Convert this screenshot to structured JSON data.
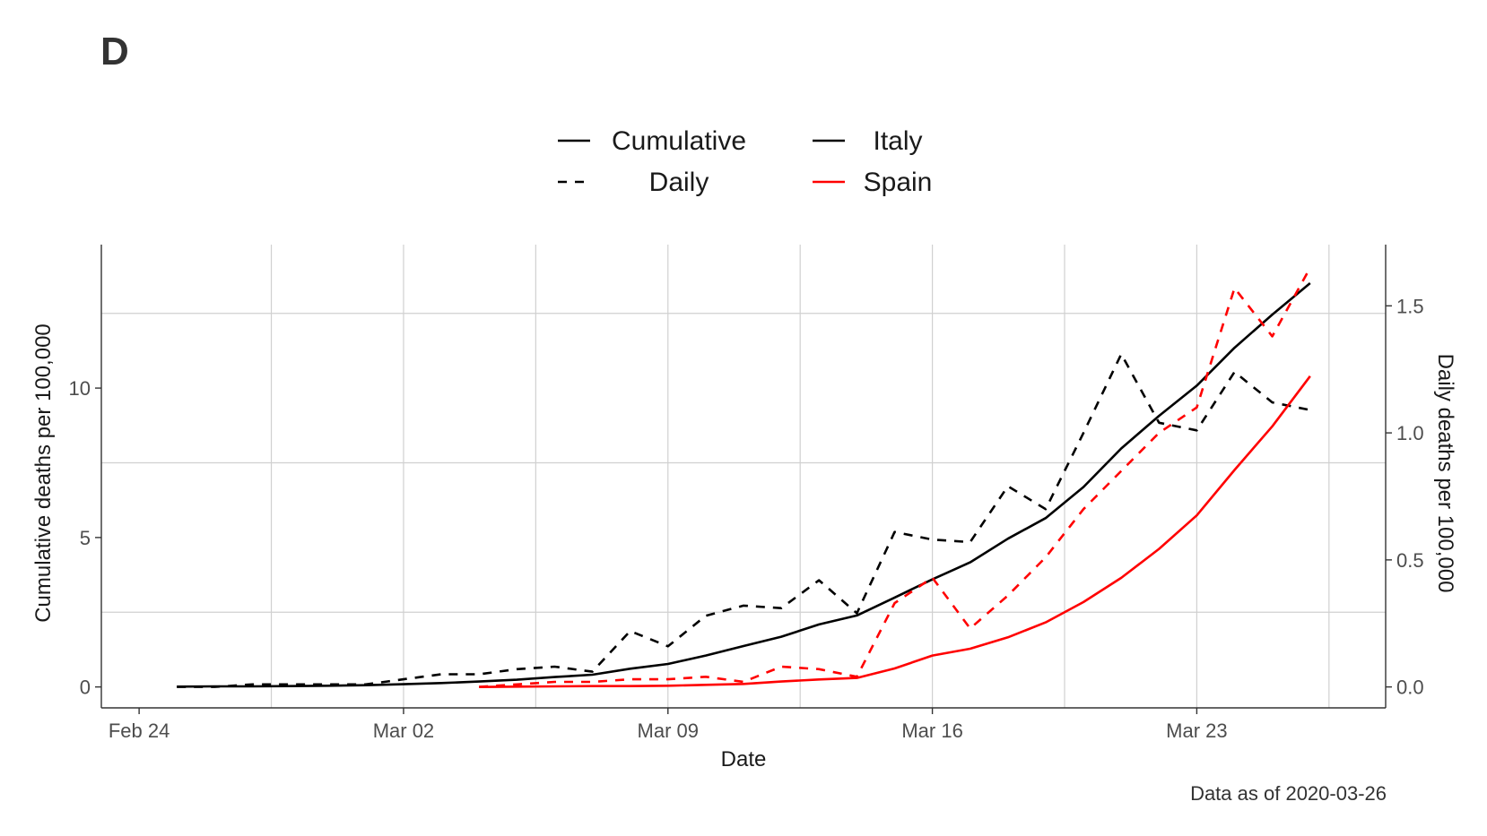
{
  "panel_label": "D",
  "caption": "Data as of 2020-03-26",
  "legend": {
    "linetype": [
      {
        "label": "Cumulative",
        "dash": "solid"
      },
      {
        "label": "Daily",
        "dash": "dashed"
      }
    ],
    "country": [
      {
        "label": "Italy",
        "color": "#000000"
      },
      {
        "label": "Spain",
        "color": "#ff0000"
      }
    ]
  },
  "chart_data": {
    "type": "line",
    "xlabel": "Date",
    "ylabel_left": "Cumulative deaths per 100,000",
    "ylabel_right": "Daily deaths per 100,000",
    "x_ticks": [
      "Feb 24",
      "Mar 02",
      "Mar 09",
      "Mar 16",
      "Mar 23"
    ],
    "x_range": [
      "2020-02-23",
      "2020-03-28"
    ],
    "y_left_ticks": [
      0,
      5,
      10
    ],
    "y_left_range": [
      -0.7,
      14.8
    ],
    "y_right_ticks": [
      "0.0",
      "0.5",
      "1.0",
      "1.5"
    ],
    "y_right_range": [
      -0.0824,
      1.741
    ],
    "grid": true,
    "legend_position": "top",
    "series": [
      {
        "name": "Italy",
        "measure": "Cumulative",
        "axis": "left",
        "color": "#000000",
        "dash": "solid",
        "x": [
          "2020-02-25",
          "2020-02-26",
          "2020-02-27",
          "2020-02-28",
          "2020-02-29",
          "2020-03-01",
          "2020-03-02",
          "2020-03-03",
          "2020-03-04",
          "2020-03-05",
          "2020-03-06",
          "2020-03-07",
          "2020-03-08",
          "2020-03-09",
          "2020-03-10",
          "2020-03-11",
          "2020-03-12",
          "2020-03-13",
          "2020-03-14",
          "2020-03-15",
          "2020-03-16",
          "2020-03-17",
          "2020-03-18",
          "2020-03-19",
          "2020-03-20",
          "2020-03-21",
          "2020-03-22",
          "2020-03-23",
          "2020-03-24",
          "2020-03-25",
          "2020-03-26"
        ],
        "y": [
          0.01,
          0.02,
          0.02,
          0.03,
          0.04,
          0.06,
          0.09,
          0.13,
          0.18,
          0.24,
          0.33,
          0.41,
          0.61,
          0.77,
          1.05,
          1.37,
          1.68,
          2.09,
          2.39,
          2.99,
          3.6,
          4.17,
          4.96,
          5.65,
          6.69,
          7.98,
          9.07,
          10.08,
          11.35,
          12.46,
          13.51
        ]
      },
      {
        "name": "Italy",
        "measure": "Daily",
        "axis": "right",
        "color": "#000000",
        "dash": "dashed",
        "x": [
          "2020-02-25",
          "2020-02-26",
          "2020-02-27",
          "2020-02-28",
          "2020-02-29",
          "2020-03-01",
          "2020-03-02",
          "2020-03-03",
          "2020-03-04",
          "2020-03-05",
          "2020-03-06",
          "2020-03-07",
          "2020-03-08",
          "2020-03-09",
          "2020-03-10",
          "2020-03-11",
          "2020-03-12",
          "2020-03-13",
          "2020-03-14",
          "2020-03-15",
          "2020-03-16",
          "2020-03-17",
          "2020-03-18",
          "2020-03-19",
          "2020-03-20",
          "2020-03-21",
          "2020-03-22",
          "2020-03-23",
          "2020-03-24",
          "2020-03-25",
          "2020-03-26"
        ],
        "y": [
          0.0,
          0.0,
          0.01,
          0.01,
          0.01,
          0.01,
          0.03,
          0.05,
          0.05,
          0.07,
          0.08,
          0.06,
          0.22,
          0.16,
          0.28,
          0.32,
          0.31,
          0.42,
          0.29,
          0.61,
          0.58,
          0.57,
          0.79,
          0.7,
          1.0,
          1.31,
          1.04,
          1.01,
          1.24,
          1.12,
          1.09
        ]
      },
      {
        "name": "Spain",
        "measure": "Cumulative",
        "axis": "left",
        "color": "#ff0000",
        "dash": "solid",
        "x": [
          "2020-03-04",
          "2020-03-05",
          "2020-03-06",
          "2020-03-07",
          "2020-03-08",
          "2020-03-09",
          "2020-03-10",
          "2020-03-11",
          "2020-03-12",
          "2020-03-13",
          "2020-03-14",
          "2020-03-15",
          "2020-03-16",
          "2020-03-17",
          "2020-03-18",
          "2020-03-19",
          "2020-03-20",
          "2020-03-21",
          "2020-03-22",
          "2020-03-23",
          "2020-03-24",
          "2020-03-25",
          "2020-03-26"
        ],
        "y": [
          0.0,
          0.01,
          0.02,
          0.03,
          0.03,
          0.04,
          0.07,
          0.1,
          0.18,
          0.25,
          0.3,
          0.62,
          1.05,
          1.28,
          1.66,
          2.16,
          2.84,
          3.65,
          4.62,
          5.74,
          7.26,
          8.72,
          10.4
        ]
      },
      {
        "name": "Spain",
        "measure": "Daily",
        "axis": "right",
        "color": "#ff0000",
        "dash": "dashed",
        "x": [
          "2020-03-04",
          "2020-03-05",
          "2020-03-06",
          "2020-03-07",
          "2020-03-08",
          "2020-03-09",
          "2020-03-10",
          "2020-03-11",
          "2020-03-12",
          "2020-03-13",
          "2020-03-14",
          "2020-03-15",
          "2020-03-16",
          "2020-03-17",
          "2020-03-18",
          "2020-03-19",
          "2020-03-20",
          "2020-03-21",
          "2020-03-22",
          "2020-03-23",
          "2020-03-24",
          "2020-03-25",
          "2020-03-26"
        ],
        "y": [
          0.0,
          0.01,
          0.02,
          0.02,
          0.03,
          0.03,
          0.04,
          0.02,
          0.08,
          0.07,
          0.04,
          0.33,
          0.43,
          0.23,
          0.36,
          0.51,
          0.7,
          0.85,
          1.0,
          1.1,
          1.57,
          1.38,
          1.65
        ]
      }
    ]
  }
}
